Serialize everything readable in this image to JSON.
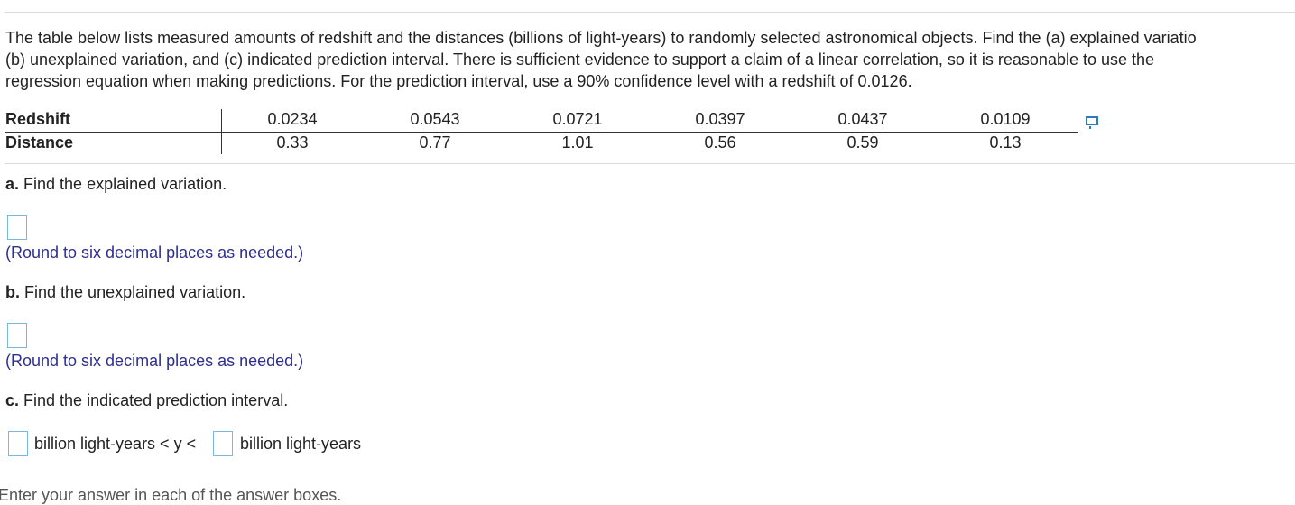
{
  "question": {
    "lines": [
      "The table below lists measured amounts of redshift and the distances (billions of light-years) to randomly selected astronomical objects. Find the (a) explained variatio",
      "(b) unexplained variation, and (c) indicated prediction interval. There is sufficient evidence to support a claim of a linear correlation, so it is reasonable to use the",
      "regression equation when making predictions. For the prediction interval, use a 90% confidence level with a redshift of 0.0126."
    ]
  },
  "table": {
    "rows": [
      {
        "label": "Redshift",
        "values": [
          "0.0234",
          "0.0543",
          "0.0721",
          "0.0397",
          "0.0437",
          "0.0109"
        ]
      },
      {
        "label": "Distance",
        "values": [
          "0.33",
          "0.77",
          "1.01",
          "0.56",
          "0.59",
          "0.13"
        ]
      }
    ]
  },
  "parts": [
    {
      "letter": "a.",
      "text": "Find the explained variation.",
      "hint": "(Round to six decimal places as needed.)"
    },
    {
      "letter": "b.",
      "text": "Find the unexplained variation.",
      "hint": "(Round to six decimal places as needed.)"
    },
    {
      "letter": "c.",
      "text": "Find the indicated prediction interval."
    }
  ],
  "interval": {
    "middle": "billion light-years < y <",
    "end": "billion light-years"
  },
  "footer": "Enter your answer in each of the answer boxes."
}
